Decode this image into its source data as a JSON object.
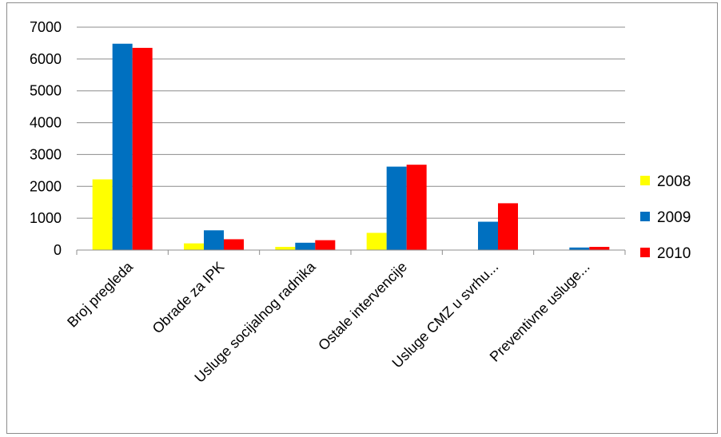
{
  "chart_data": {
    "type": "bar",
    "title": "",
    "xlabel": "",
    "ylabel": "",
    "ylim": [
      0,
      7000
    ],
    "yticks": [
      "0",
      "1000",
      "2000",
      "3000",
      "4000",
      "5000",
      "6000",
      "7000"
    ],
    "grid": true,
    "legend_position": "right",
    "categories": [
      "Broj pregleda",
      "Obrade za IPK",
      "Usluge socijalnog radnika",
      "Ostale intervencije",
      "Usluge CMZ  u svrhu...",
      "Preventivne  usluge..."
    ],
    "series": [
      {
        "name": "2008",
        "color": "#ffff00",
        "values": [
          2220,
          210,
          100,
          540,
          0,
          0
        ]
      },
      {
        "name": "2009",
        "color": "#0070c0",
        "values": [
          6480,
          620,
          230,
          2620,
          890,
          80
        ]
      },
      {
        "name": "2010",
        "color": "#ff0000",
        "values": [
          6350,
          340,
          310,
          2680,
          1470,
          100
        ]
      }
    ]
  }
}
